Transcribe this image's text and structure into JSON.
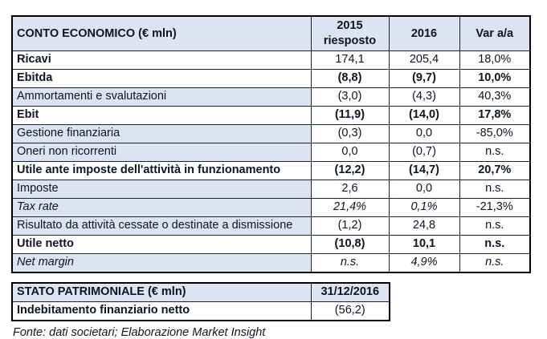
{
  "income_table": {
    "title": "CONTO ECONOMICO (€ mln)",
    "col_2015_line1": "2015",
    "col_2015_line2": "riesposto",
    "col_2016": "2016",
    "col_var": "Var a/a",
    "rows": [
      {
        "label": "Ricavi",
        "v2015": "174,1",
        "v2016": "205,4",
        "var": "18,0%",
        "style": "label-bold"
      },
      {
        "label": "Ebitda",
        "v2015": "(8,8)",
        "v2016": "(9,7)",
        "var": "10,0%",
        "style": "bold"
      },
      {
        "label": "Ammortamenti e svalutazioni",
        "v2015": "(3,0)",
        "v2016": "(4,3)",
        "var": "40,3%",
        "style": "regular"
      },
      {
        "label": "Ebit",
        "v2015": "(11,9)",
        "v2016": "(14,0)",
        "var": "17,8%",
        "style": "bold"
      },
      {
        "label": "Gestione finanziaria",
        "v2015": "(0,3)",
        "v2016": "0,0",
        "var": "-85,0%",
        "style": "regular"
      },
      {
        "label": "Oneri non ricorrenti",
        "v2015": "0,0",
        "v2016": "(0,7)",
        "var": "n.s.",
        "style": "regular"
      },
      {
        "label": "Utile ante imposte dell'attività in funzionamento",
        "v2015": "(12,2)",
        "v2016": "(14,7)",
        "var": "20,7%",
        "style": "bold"
      },
      {
        "label": "Imposte",
        "v2015": "2,6",
        "v2016": "0,0",
        "var": "n.s.",
        "style": "regular"
      },
      {
        "label": "Tax rate",
        "v2015": "21,4%",
        "v2016": "0,1%",
        "var": "-21,3%",
        "style": "italic"
      },
      {
        "label": "Risultato da attività cessate o destinate a dismissione",
        "v2015": "(1,2)",
        "v2016": "24,8",
        "var": "n.s.",
        "style": "regular"
      },
      {
        "label": "Utile netto",
        "v2015": "(10,8)",
        "v2016": "10,1",
        "var": "n.s.",
        "style": "bold"
      },
      {
        "label": "Net margin",
        "v2015": "n.s.",
        "v2016": "4,9%",
        "var": "n.s.",
        "style": "italic-all"
      }
    ]
  },
  "balance_table": {
    "title": "STATO PATRIMONIALE (€ mln)",
    "col_date": "31/12/2016",
    "rows": [
      {
        "label": "Indebitamento finanziario netto",
        "value": "(56,2)",
        "style": "label-bold"
      }
    ]
  },
  "source_note": "Fonte: dati societari; Elaborazione Market Insight",
  "colors": {
    "band_bg": "#dce4f0",
    "border": "#000000",
    "text": "#0e1422"
  }
}
